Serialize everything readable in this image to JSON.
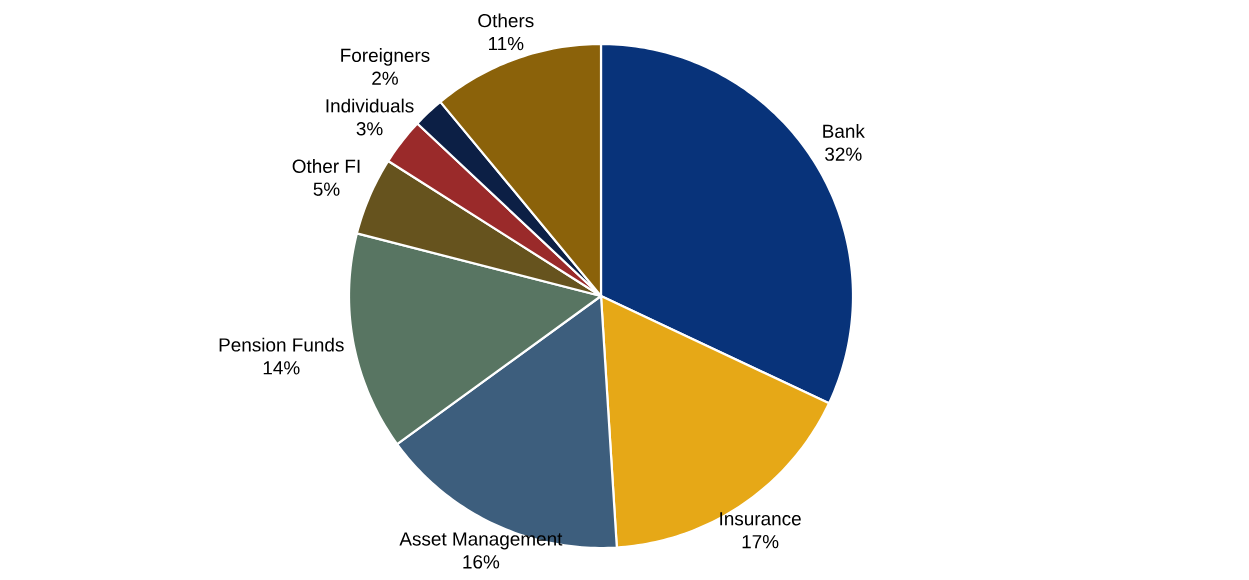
{
  "chart_data": {
    "type": "pie",
    "categories": [
      "Bank",
      "Insurance",
      "Asset Management",
      "Pension Funds",
      "Other FI",
      "Individuals",
      "Foreigners",
      "Others"
    ],
    "values": [
      32,
      17,
      16,
      14,
      5,
      3,
      2,
      11
    ],
    "value_labels": [
      "32%",
      "17%",
      "16%",
      "14%",
      "5%",
      "3%",
      "2%",
      "11%"
    ],
    "colors": [
      "#08337a",
      "#e6a817",
      "#3d5e7d",
      "#587562",
      "#66531e",
      "#9a2a2a",
      "#0c1f45",
      "#8b620a"
    ]
  }
}
